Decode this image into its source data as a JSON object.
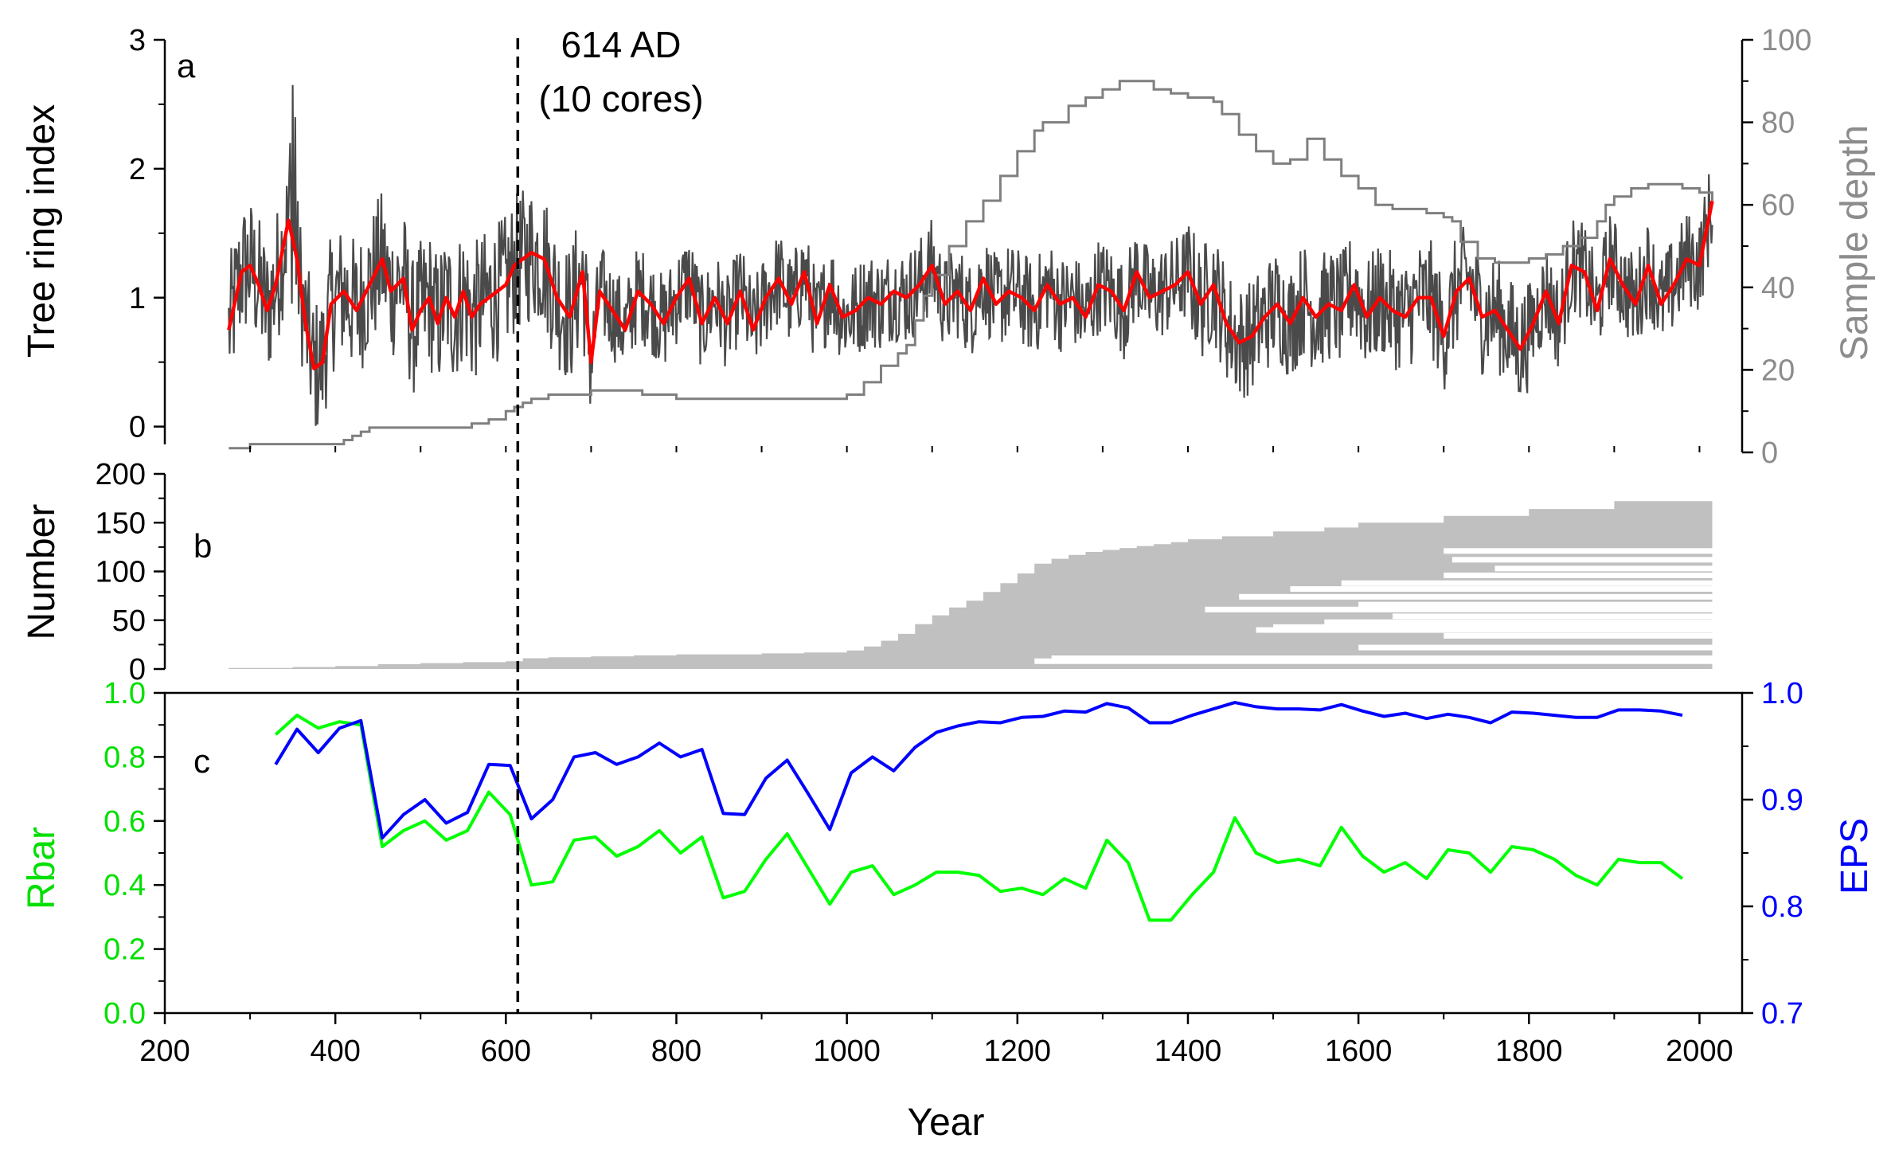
{
  "chart_data": [
    {
      "panel_label": "a",
      "type": "line",
      "xlabel": "",
      "ylabel": "Tree ring index",
      "ylabel_right": "Sample depth",
      "xlim": [
        200,
        2050
      ],
      "ylim": [
        -0.2,
        3
      ],
      "ylim_right": [
        0,
        100
      ],
      "yticks": [
        "0",
        "1",
        "2",
        "3"
      ],
      "yticks_right": [
        "0",
        "20",
        "40",
        "60",
        "80",
        "100"
      ],
      "colors": {
        "raw": "#4a4a4a",
        "smooth": "#ff0000",
        "depth": "#7f7f7f"
      },
      "annotation": {
        "x": 614,
        "line1": "614 AD",
        "line2": "(10 cores)"
      },
      "smooth_series": {
        "x": [
          275,
          290,
          300,
          310,
          320,
          330,
          345,
          355,
          365,
          375,
          385,
          395,
          410,
          425,
          440,
          455,
          465,
          480,
          490,
          500,
          510,
          520,
          530,
          540,
          550,
          560,
          570,
          580,
          590,
          600,
          610,
          620,
          630,
          645,
          660,
          675,
          690,
          700,
          710,
          725,
          740,
          755,
          770,
          785,
          800,
          815,
          830,
          845,
          860,
          875,
          890,
          905,
          920,
          935,
          950,
          965,
          980,
          995,
          1010,
          1025,
          1040,
          1055,
          1070,
          1085,
          1100,
          1115,
          1130,
          1145,
          1160,
          1175,
          1190,
          1205,
          1220,
          1235,
          1250,
          1265,
          1280,
          1295,
          1310,
          1325,
          1340,
          1355,
          1370,
          1385,
          1400,
          1415,
          1430,
          1445,
          1460,
          1475,
          1490,
          1505,
          1520,
          1535,
          1550,
          1565,
          1580,
          1595,
          1610,
          1625,
          1640,
          1655,
          1670,
          1685,
          1700,
          1715,
          1730,
          1745,
          1760,
          1775,
          1790,
          1805,
          1820,
          1835,
          1850,
          1865,
          1880,
          1895,
          1910,
          1925,
          1940,
          1955,
          1970,
          1985,
          2000,
          2015
        ],
        "y": [
          0.75,
          1.2,
          1.25,
          1.1,
          0.9,
          1.1,
          1.6,
          1.3,
          0.8,
          0.45,
          0.5,
          0.95,
          1.05,
          0.9,
          1.1,
          1.3,
          1.05,
          1.15,
          0.75,
          0.9,
          1.0,
          0.8,
          1.0,
          0.85,
          1.05,
          0.85,
          0.95,
          1.0,
          1.05,
          1.1,
          1.25,
          1.3,
          1.35,
          1.3,
          1.0,
          0.85,
          1.2,
          0.5,
          1.05,
          0.9,
          0.75,
          1.05,
          0.95,
          0.8,
          1.0,
          1.15,
          0.8,
          1.0,
          0.8,
          1.05,
          0.75,
          1.0,
          1.15,
          0.95,
          1.2,
          0.8,
          1.1,
          0.85,
          0.9,
          1.0,
          0.95,
          1.05,
          1.0,
          1.1,
          1.25,
          0.95,
          1.05,
          0.9,
          1.15,
          0.95,
          1.05,
          1.0,
          0.9,
          1.1,
          0.95,
          1.0,
          0.85,
          1.1,
          1.05,
          0.9,
          1.2,
          1.0,
          1.05,
          1.1,
          1.2,
          0.95,
          1.1,
          0.8,
          0.65,
          0.7,
          0.85,
          0.95,
          0.8,
          1.0,
          0.85,
          0.95,
          0.9,
          1.1,
          0.85,
          1.0,
          0.9,
          0.85,
          1.0,
          1.0,
          0.7,
          1.05,
          1.15,
          0.85,
          0.9,
          0.75,
          0.6,
          0.8,
          1.05,
          0.8,
          1.25,
          1.2,
          0.9,
          1.3,
          1.1,
          0.95,
          1.25,
          0.95,
          1.1,
          1.3,
          1.25,
          1.75
        ]
      },
      "depth_series": {
        "x": [
          275,
          300,
          400,
          410,
          420,
          430,
          440,
          450,
          460,
          480,
          500,
          520,
          540,
          560,
          580,
          600,
          610,
          620,
          630,
          640,
          650,
          700,
          720,
          740,
          760,
          800,
          850,
          900,
          950,
          1000,
          1020,
          1040,
          1060,
          1070,
          1080,
          1090,
          1100,
          1120,
          1140,
          1160,
          1180,
          1200,
          1220,
          1230,
          1240,
          1260,
          1280,
          1300,
          1320,
          1340,
          1360,
          1380,
          1400,
          1420,
          1430,
          1440,
          1460,
          1480,
          1500,
          1520,
          1540,
          1560,
          1580,
          1600,
          1620,
          1640,
          1660,
          1680,
          1700,
          1710,
          1720,
          1740,
          1760,
          1780,
          1800,
          1820,
          1840,
          1860,
          1880,
          1890,
          1900,
          1920,
          1940,
          1960,
          1980,
          2000,
          2015
        ],
        "y": [
          1,
          2,
          2,
          3,
          4,
          5,
          6,
          6,
          6,
          6,
          6,
          6,
          6,
          7,
          8,
          10,
          11,
          12,
          13,
          13,
          14,
          15,
          15,
          15,
          14,
          13,
          13,
          13,
          13,
          14,
          17,
          21,
          24,
          26,
          32,
          38,
          43,
          50,
          56,
          61,
          67,
          73,
          78,
          80,
          80,
          84,
          86,
          88,
          90,
          90,
          88,
          87,
          86,
          86,
          85,
          82,
          77,
          73,
          70,
          71,
          76,
          71,
          67,
          64,
          60,
          59,
          59,
          58,
          57,
          56,
          51,
          47,
          46,
          46,
          47,
          48,
          50,
          52,
          56,
          60,
          62,
          64,
          65,
          65,
          64,
          63,
          61
        ]
      }
    },
    {
      "panel_label": "b",
      "type": "area",
      "xlabel": "",
      "ylabel": "Number",
      "ylim": [
        0,
        200
      ],
      "yticks": [
        "0",
        "50",
        "100",
        "150",
        "200"
      ],
      "color": "#c0c0c0",
      "cores_started": {
        "x": [
          275,
          350,
          400,
          450,
          500,
          550,
          600,
          620,
          650,
          700,
          750,
          800,
          850,
          900,
          950,
          1000,
          1020,
          1040,
          1060,
          1080,
          1100,
          1120,
          1140,
          1160,
          1180,
          1200,
          1220,
          1240,
          1260,
          1280,
          1300,
          1320,
          1340,
          1360,
          1380,
          1400,
          1440,
          1500,
          1560,
          1600,
          1700,
          1800,
          1900,
          2015
        ],
        "y": [
          1,
          2,
          3,
          5,
          6,
          7,
          8,
          11,
          12,
          13,
          14,
          15,
          15,
          16,
          17,
          19,
          23,
          29,
          36,
          46,
          55,
          63,
          70,
          79,
          88,
          98,
          108,
          113,
          117,
          120,
          122,
          124,
          126,
          128,
          130,
          133,
          136,
          141,
          145,
          150,
          157,
          164,
          172,
          187
        ]
      },
      "missing_bands": [
        {
          "from": 1700,
          "y": 121
        },
        {
          "from": 1710,
          "y": 112
        },
        {
          "from": 1760,
          "y": 103
        },
        {
          "from": 1700,
          "y": 96
        },
        {
          "from": 1580,
          "y": 88
        },
        {
          "from": 1520,
          "y": 82
        },
        {
          "from": 1460,
          "y": 74
        },
        {
          "from": 1600,
          "y": 66
        },
        {
          "from": 1420,
          "y": 61
        },
        {
          "from": 1640,
          "y": 54
        },
        {
          "from": 1560,
          "y": 48
        },
        {
          "from": 1500,
          "y": 43
        },
        {
          "from": 1480,
          "y": 40
        },
        {
          "from": 1700,
          "y": 34
        },
        {
          "from": 1600,
          "y": 22
        },
        {
          "from": 1240,
          "y": 11
        },
        {
          "from": 1220,
          "y": 8
        }
      ]
    },
    {
      "panel_label": "c",
      "type": "line",
      "xlabel": "Year",
      "ylabel": "Rbar",
      "ylabel_right": "EPS",
      "xlim": [
        200,
        2050
      ],
      "xticks": [
        "200",
        "400",
        "600",
        "800",
        "1000",
        "1200",
        "1400",
        "1600",
        "1800",
        "2000"
      ],
      "ylim": [
        0,
        1
      ],
      "ylim_right": [
        0.7,
        1.0
      ],
      "yticks": [
        "0.0",
        "0.2",
        "0.4",
        "0.6",
        "0.8",
        "1.0"
      ],
      "yticks_right": [
        "0.7",
        "0.8",
        "0.9",
        "1.0"
      ],
      "colors": {
        "rbar": "#00ff00",
        "eps": "#0000ff"
      },
      "series": [
        {
          "key": "rbar",
          "x": [
            330,
            355,
            380,
            405,
            430,
            455,
            480,
            505,
            530,
            555,
            580,
            605,
            630,
            655,
            680,
            705,
            730,
            755,
            780,
            805,
            830,
            855,
            880,
            905,
            930,
            955,
            980,
            1005,
            1030,
            1055,
            1080,
            1105,
            1130,
            1155,
            1180,
            1205,
            1230,
            1255,
            1280,
            1305,
            1330,
            1355,
            1380,
            1405,
            1430,
            1455,
            1480,
            1505,
            1530,
            1555,
            1580,
            1605,
            1630,
            1655,
            1680,
            1705,
            1730,
            1755,
            1780,
            1805,
            1830,
            1855,
            1880,
            1905,
            1930,
            1955,
            1980
          ],
          "y": [
            0.87,
            0.93,
            0.89,
            0.91,
            0.9,
            0.52,
            0.57,
            0.6,
            0.54,
            0.57,
            0.69,
            0.62,
            0.4,
            0.41,
            0.54,
            0.55,
            0.49,
            0.52,
            0.57,
            0.5,
            0.55,
            0.36,
            0.38,
            0.48,
            0.56,
            0.45,
            0.34,
            0.44,
            0.46,
            0.37,
            0.4,
            0.44,
            0.44,
            0.43,
            0.38,
            0.39,
            0.37,
            0.42,
            0.39,
            0.54,
            0.47,
            0.29,
            0.29,
            0.37,
            0.44,
            0.61,
            0.5,
            0.47,
            0.48,
            0.46,
            0.58,
            0.49,
            0.44,
            0.47,
            0.42,
            0.51,
            0.5,
            0.44,
            0.52,
            0.51,
            0.48,
            0.43,
            0.4,
            0.48,
            0.47,
            0.47,
            0.42
          ]
        },
        {
          "key": "eps",
          "x": [
            330,
            355,
            380,
            405,
            430,
            455,
            480,
            505,
            530,
            555,
            580,
            605,
            630,
            655,
            680,
            705,
            730,
            755,
            780,
            805,
            830,
            855,
            880,
            905,
            930,
            955,
            980,
            1005,
            1030,
            1055,
            1080,
            1105,
            1130,
            1155,
            1180,
            1205,
            1230,
            1255,
            1280,
            1305,
            1330,
            1355,
            1380,
            1405,
            1430,
            1455,
            1480,
            1505,
            1530,
            1555,
            1580,
            1605,
            1630,
            1655,
            1680,
            1705,
            1730,
            1755,
            1780,
            1805,
            1830,
            1855,
            1880,
            1905,
            1930,
            1955,
            1980
          ],
          "y": [
            0.933,
            0.966,
            0.944,
            0.967,
            0.974,
            0.864,
            0.886,
            0.9,
            0.878,
            0.888,
            0.933,
            0.932,
            0.882,
            0.9,
            0.94,
            0.944,
            0.933,
            0.94,
            0.953,
            0.94,
            0.947,
            0.887,
            0.886,
            0.92,
            0.937,
            0.905,
            0.872,
            0.925,
            0.94,
            0.927,
            0.949,
            0.963,
            0.969,
            0.973,
            0.972,
            0.977,
            0.978,
            0.983,
            0.982,
            0.99,
            0.986,
            0.972,
            0.972,
            0.979,
            0.985,
            0.991,
            0.987,
            0.985,
            0.985,
            0.984,
            0.989,
            0.983,
            0.978,
            0.981,
            0.976,
            0.98,
            0.977,
            0.972,
            0.982,
            0.981,
            0.979,
            0.977,
            0.977,
            0.984,
            0.984,
            0.983,
            0.979
          ]
        }
      ]
    }
  ]
}
